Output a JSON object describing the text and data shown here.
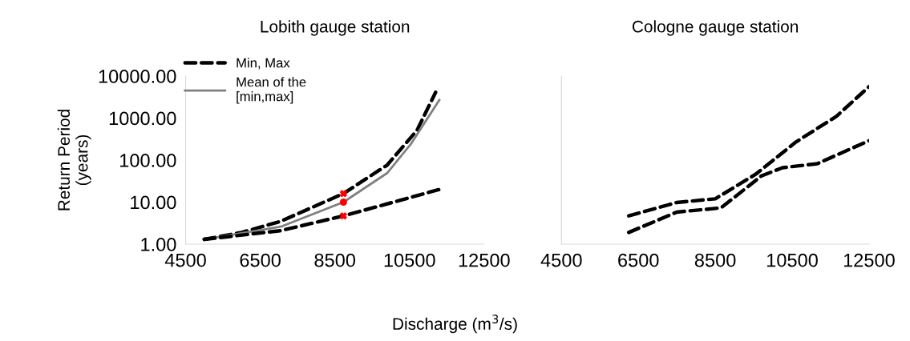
{
  "chart_data": [
    {
      "type": "line",
      "title": "Lobith gauge station",
      "ylabel": "Return Period\n(years)",
      "xlabel": "Discharge (m$^{3}$/s)",
      "log": "y",
      "xlim": [
        4500,
        12500
      ],
      "xticks": [
        4500,
        6500,
        8500,
        10500,
        12500
      ],
      "ylim": [
        1,
        10000
      ],
      "yticks": [
        {
          "value": 1,
          "label": "1.00"
        },
        {
          "value": 10,
          "label": "10.00"
        },
        {
          "value": 100,
          "label": "100.00"
        },
        {
          "value": 1000,
          "label": "1000.00"
        },
        {
          "value": 10000,
          "label": "10000.00"
        }
      ],
      "grid": false,
      "legend": "top left",
      "series": [
        {
          "name": "Min, Max",
          "color": "#000000",
          "line_style": "dashed",
          "x": [
            5000,
            6000,
            7050,
            8730,
            9900,
            10700,
            11200
          ],
          "values": [
            1.3,
            1.9,
            3.5,
            16,
            76,
            510,
            4100
          ]
        },
        {
          "name": "Mean of the [min,max]",
          "color": "#808080",
          "line_style": "solid",
          "x": [
            5000,
            7050,
            8730,
            9900,
            10550,
            11300
          ],
          "values": [
            1.3,
            2.6,
            10,
            49,
            250,
            2700
          ]
        },
        {
          "color": "#000000",
          "line_style": "dashed",
          "x": [
            5000,
            7050,
            8730,
            11300
          ],
          "values": [
            1.3,
            2.1,
            4.7,
            20
          ]
        },
        {
          "type": "scatter",
          "marker": "cross",
          "color": "#ff0000",
          "x": [
            8730,
            8730
          ],
          "values": [
            16,
            4.7
          ]
        },
        {
          "type": "scatter",
          "marker": "circle",
          "color": "#ff0000",
          "x": [
            8730
          ],
          "values": [
            10
          ]
        }
      ]
    },
    {
      "type": "line",
      "title": "Cologne gauge station",
      "log": "y",
      "xlim": [
        4500,
        12500
      ],
      "xticks": [
        4500,
        6500,
        8500,
        10500,
        12500
      ],
      "ylim": [
        1,
        10000
      ],
      "grid": false,
      "tick_labels": "x",
      "series": [
        {
          "color": "#000000",
          "line_style": "dashed",
          "x": [
            6250,
            7500,
            8500,
            9550,
            10600,
            11650,
            12500
          ],
          "values": [
            4.7,
            9.8,
            12,
            46,
            270,
            1100,
            5600
          ]
        },
        {
          "color": "#000000",
          "line_style": "dashed",
          "x": [
            6250,
            7500,
            8650,
            9700,
            10250,
            11150,
            12500
          ],
          "values": [
            1.9,
            5.8,
            7.3,
            42,
            66,
            82,
            290
          ]
        }
      ]
    }
  ]
}
